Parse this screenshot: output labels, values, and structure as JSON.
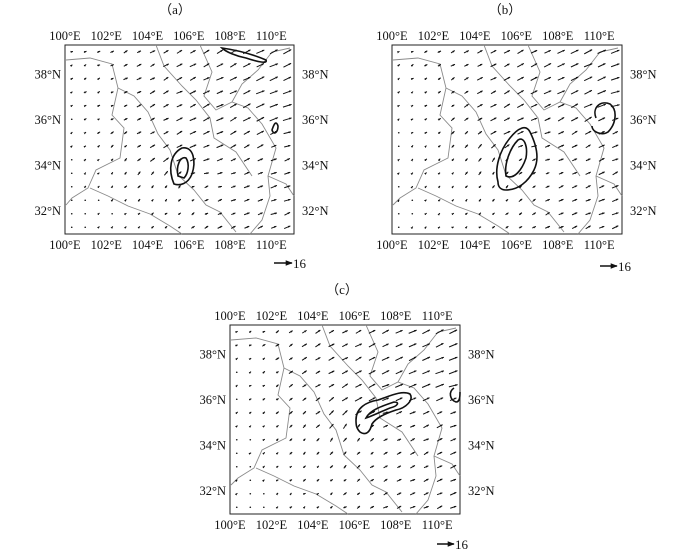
{
  "panels": [
    {
      "id": "a",
      "label": "（a）"
    },
    {
      "id": "b",
      "label": "（b）"
    },
    {
      "id": "c",
      "label": "（c）"
    }
  ],
  "axes": {
    "lon_ticks": [
      "100°E",
      "102°E",
      "104°E",
      "106°E",
      "108°E",
      "110°E"
    ],
    "lat_ticks": [
      "32°N",
      "34°N",
      "36°N",
      "38°N"
    ],
    "lon_values": [
      100,
      102,
      104,
      106,
      108,
      110
    ],
    "lat_values": [
      32,
      34,
      36,
      38
    ],
    "lon_range": [
      100,
      111.1
    ],
    "lat_range": [
      31,
      39.3
    ]
  },
  "reference_vector": {
    "value": "16"
  },
  "colors": {
    "ink": "#111111",
    "boundary": "#8a8a8a",
    "frame": "#222222"
  }
}
